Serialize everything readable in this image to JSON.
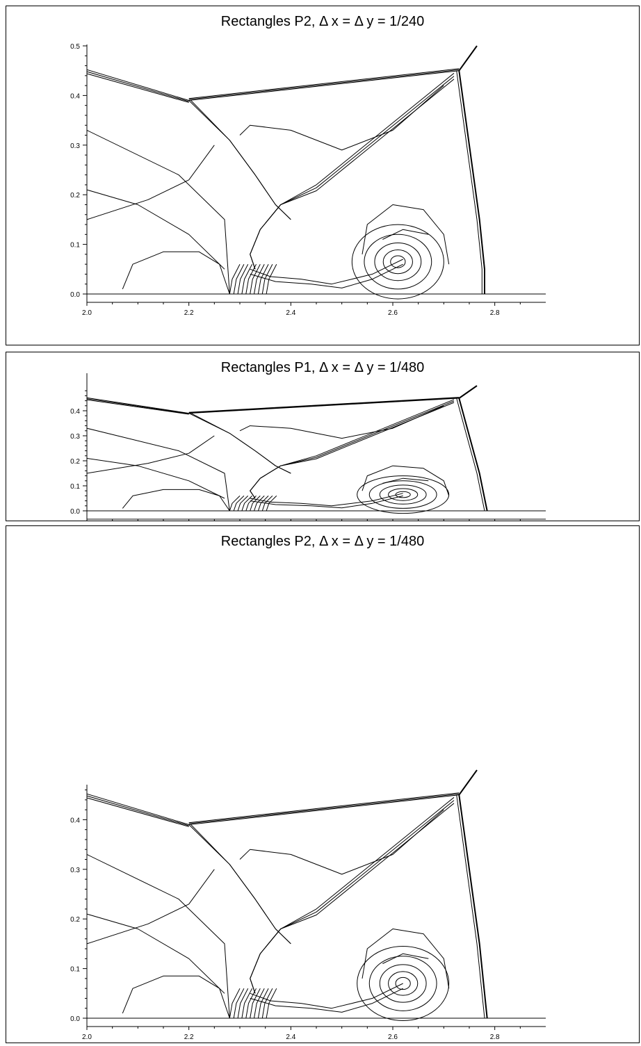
{
  "chart_data": [
    {
      "type": "contour",
      "title": "Rectangles P2, Δ x = Δ y = 1/240",
      "xlim": [
        2.0,
        2.9
      ],
      "ylim": [
        0.0,
        0.5
      ],
      "xticks": [
        "2.0",
        "2.2",
        "2.4",
        "2.6",
        "2.8"
      ],
      "yticks": [
        "0.0",
        "0.1",
        "0.2",
        "0.3",
        "0.4",
        "0.5"
      ],
      "grid": false,
      "features": {
        "triple_point": [
          2.2,
          0.39
        ],
        "shock_triple_point": [
          2.73,
          0.45
        ],
        "vortex_center": [
          2.61,
          0.065
        ],
        "bow_shock_foot": [
          2.78,
          0.0
        ]
      }
    },
    {
      "type": "contour",
      "title": "Rectangles P1, Δ x = Δ y = 1/480",
      "xlim": [
        2.0,
        2.9
      ],
      "ylim": [
        0.0,
        0.5
      ],
      "xticks": [
        "2.0",
        "2.2",
        "2.4",
        "2.6",
        "2.8"
      ],
      "yticks": [
        "0.0",
        "0.1",
        "0.2",
        "0.3",
        "0.4"
      ],
      "grid": false,
      "features": {
        "triple_point": [
          2.2,
          0.39
        ],
        "shock_triple_point": [
          2.73,
          0.45
        ],
        "vortex_center": [
          2.62,
          0.065
        ],
        "bow_shock_foot": [
          2.785,
          0.0
        ]
      }
    },
    {
      "type": "contour",
      "title": "Rectangles P2, Δ x = Δ y = 1/480",
      "xlim": [
        2.0,
        2.9
      ],
      "ylim": [
        0.0,
        0.5
      ],
      "xticks": [
        "2.0",
        "2.2",
        "2.4",
        "2.6",
        "2.8"
      ],
      "yticks": [
        "0.0",
        "0.1",
        "0.2",
        "0.3",
        "0.4"
      ],
      "grid": false,
      "features": {
        "triple_point": [
          2.2,
          0.39
        ],
        "shock_triple_point": [
          2.73,
          0.45
        ],
        "vortex_center": [
          2.62,
          0.07
        ],
        "bow_shock_foot": [
          2.785,
          0.0
        ]
      }
    }
  ]
}
